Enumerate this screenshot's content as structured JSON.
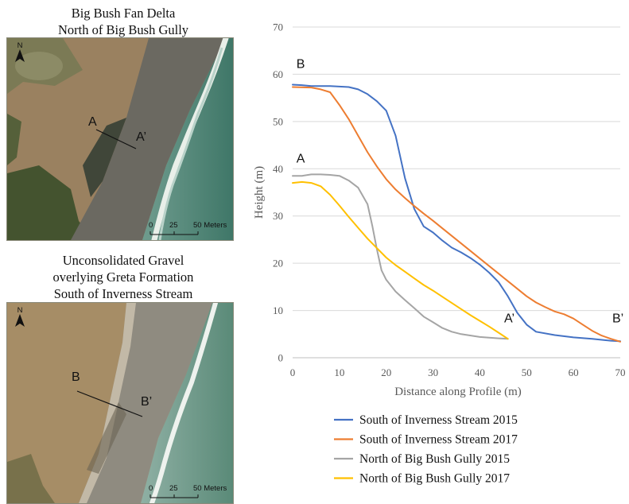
{
  "map_top": {
    "title_line1": "Big Bush Fan Delta",
    "title_line2": "North of Big Bush Gully",
    "north_label": "N",
    "point_start": "A",
    "point_end": "A’",
    "scale_labels": [
      "0",
      "25",
      "50 Meters"
    ]
  },
  "map_bottom": {
    "title_line1": "Unconsolidated Gravel",
    "title_line2": "overlying Greta Formation",
    "title_line3": "South of Inverness Stream",
    "north_label": "N",
    "point_start": "B",
    "point_end": "B’",
    "scale_labels": [
      "0",
      "25",
      "50 Meters"
    ]
  },
  "chart_data": {
    "type": "line",
    "xlabel": "Distance along Profile (m)",
    "ylabel": "Height (m)",
    "xlim": [
      0,
      70
    ],
    "ylim": [
      0,
      70
    ],
    "x_ticks": [
      0,
      10,
      20,
      30,
      40,
      50,
      60,
      70
    ],
    "y_ticks": [
      0,
      10,
      20,
      30,
      40,
      50,
      60,
      70
    ],
    "grid": "horizontal",
    "legend_position": "bottom",
    "series": [
      {
        "name": "South of Inverness Stream 2015",
        "color": "#4472C4",
        "points": [
          [
            0,
            57.8
          ],
          [
            2,
            57.7
          ],
          [
            4,
            57.5
          ],
          [
            8,
            57.5
          ],
          [
            12,
            57.3
          ],
          [
            14,
            56.8
          ],
          [
            16,
            55.8
          ],
          [
            18,
            54.3
          ],
          [
            20,
            52.3
          ],
          [
            22,
            47
          ],
          [
            24,
            38
          ],
          [
            26,
            31.5
          ],
          [
            28,
            27.8
          ],
          [
            30,
            26.5
          ],
          [
            32,
            24.8
          ],
          [
            34,
            23.3
          ],
          [
            36,
            22.3
          ],
          [
            38,
            21.1
          ],
          [
            40,
            19.7
          ],
          [
            42,
            18
          ],
          [
            44,
            16
          ],
          [
            46,
            13
          ],
          [
            48,
            9.5
          ],
          [
            50,
            7
          ],
          [
            52,
            5.5
          ],
          [
            56,
            4.8
          ],
          [
            60,
            4.3
          ],
          [
            64,
            4
          ],
          [
            68,
            3.6
          ],
          [
            70,
            3.5
          ]
        ]
      },
      {
        "name": "South of Inverness Stream 2017",
        "color": "#ED7D31",
        "points": [
          [
            0,
            57.3
          ],
          [
            4,
            57.2
          ],
          [
            6,
            56.8
          ],
          [
            8,
            56.2
          ],
          [
            10,
            53.5
          ],
          [
            12,
            50.5
          ],
          [
            14,
            47
          ],
          [
            16,
            43.5
          ],
          [
            18,
            40.5
          ],
          [
            20,
            37.8
          ],
          [
            22,
            35.6
          ],
          [
            24,
            33.8
          ],
          [
            26,
            32.1
          ],
          [
            28,
            30.5
          ],
          [
            30,
            29
          ],
          [
            32,
            27.4
          ],
          [
            34,
            25.8
          ],
          [
            36,
            24.2
          ],
          [
            38,
            22.6
          ],
          [
            40,
            21
          ],
          [
            42,
            19.4
          ],
          [
            44,
            17.8
          ],
          [
            46,
            16.2
          ],
          [
            48,
            14.6
          ],
          [
            50,
            13
          ],
          [
            52,
            11.7
          ],
          [
            54,
            10.7
          ],
          [
            56,
            9.8
          ],
          [
            58,
            9.2
          ],
          [
            60,
            8.3
          ],
          [
            62,
            7
          ],
          [
            64,
            5.7
          ],
          [
            66,
            4.7
          ],
          [
            68,
            4
          ],
          [
            70,
            3.4
          ]
        ]
      },
      {
        "name": "North of Big Bush Gully 2015",
        "color": "#A5A5A5",
        "points": [
          [
            0,
            38.5
          ],
          [
            2,
            38.5
          ],
          [
            4,
            38.8
          ],
          [
            6,
            38.8
          ],
          [
            8,
            38.7
          ],
          [
            10,
            38.5
          ],
          [
            12,
            37.5
          ],
          [
            14,
            36
          ],
          [
            16,
            32.5
          ],
          [
            17,
            28
          ],
          [
            18,
            23
          ],
          [
            19,
            18.5
          ],
          [
            20,
            16.5
          ],
          [
            22,
            14
          ],
          [
            24,
            12.2
          ],
          [
            26,
            10.5
          ],
          [
            28,
            8.7
          ],
          [
            30,
            7.5
          ],
          [
            32,
            6.3
          ],
          [
            34,
            5.5
          ],
          [
            36,
            5
          ],
          [
            40,
            4.4
          ],
          [
            44,
            4.1
          ],
          [
            46,
            4
          ]
        ]
      },
      {
        "name": "North of Big Bush Gully 2017",
        "color": "#FFC000",
        "points": [
          [
            0,
            37
          ],
          [
            2,
            37.2
          ],
          [
            4,
            37
          ],
          [
            6,
            36.3
          ],
          [
            8,
            34.5
          ],
          [
            10,
            32.2
          ],
          [
            12,
            29.8
          ],
          [
            14,
            27.5
          ],
          [
            16,
            25.2
          ],
          [
            18,
            23.2
          ],
          [
            20,
            21.2
          ],
          [
            22,
            19.6
          ],
          [
            24,
            18.2
          ],
          [
            26,
            16.8
          ],
          [
            28,
            15.4
          ],
          [
            30,
            14.2
          ],
          [
            32,
            12.9
          ],
          [
            34,
            11.6
          ],
          [
            36,
            10.3
          ],
          [
            38,
            9
          ],
          [
            40,
            7.8
          ],
          [
            42,
            6.6
          ],
          [
            44,
            5.3
          ],
          [
            46,
            4
          ]
        ]
      }
    ],
    "annotations": [
      {
        "text": "B",
        "x": 0.8,
        "y": 61.3
      },
      {
        "text": "A",
        "x": 0.8,
        "y": 41.3
      },
      {
        "text": "A’",
        "x": 45.2,
        "y": 7.5
      },
      {
        "text": "B’",
        "x": 68.3,
        "y": 7.5
      }
    ]
  }
}
